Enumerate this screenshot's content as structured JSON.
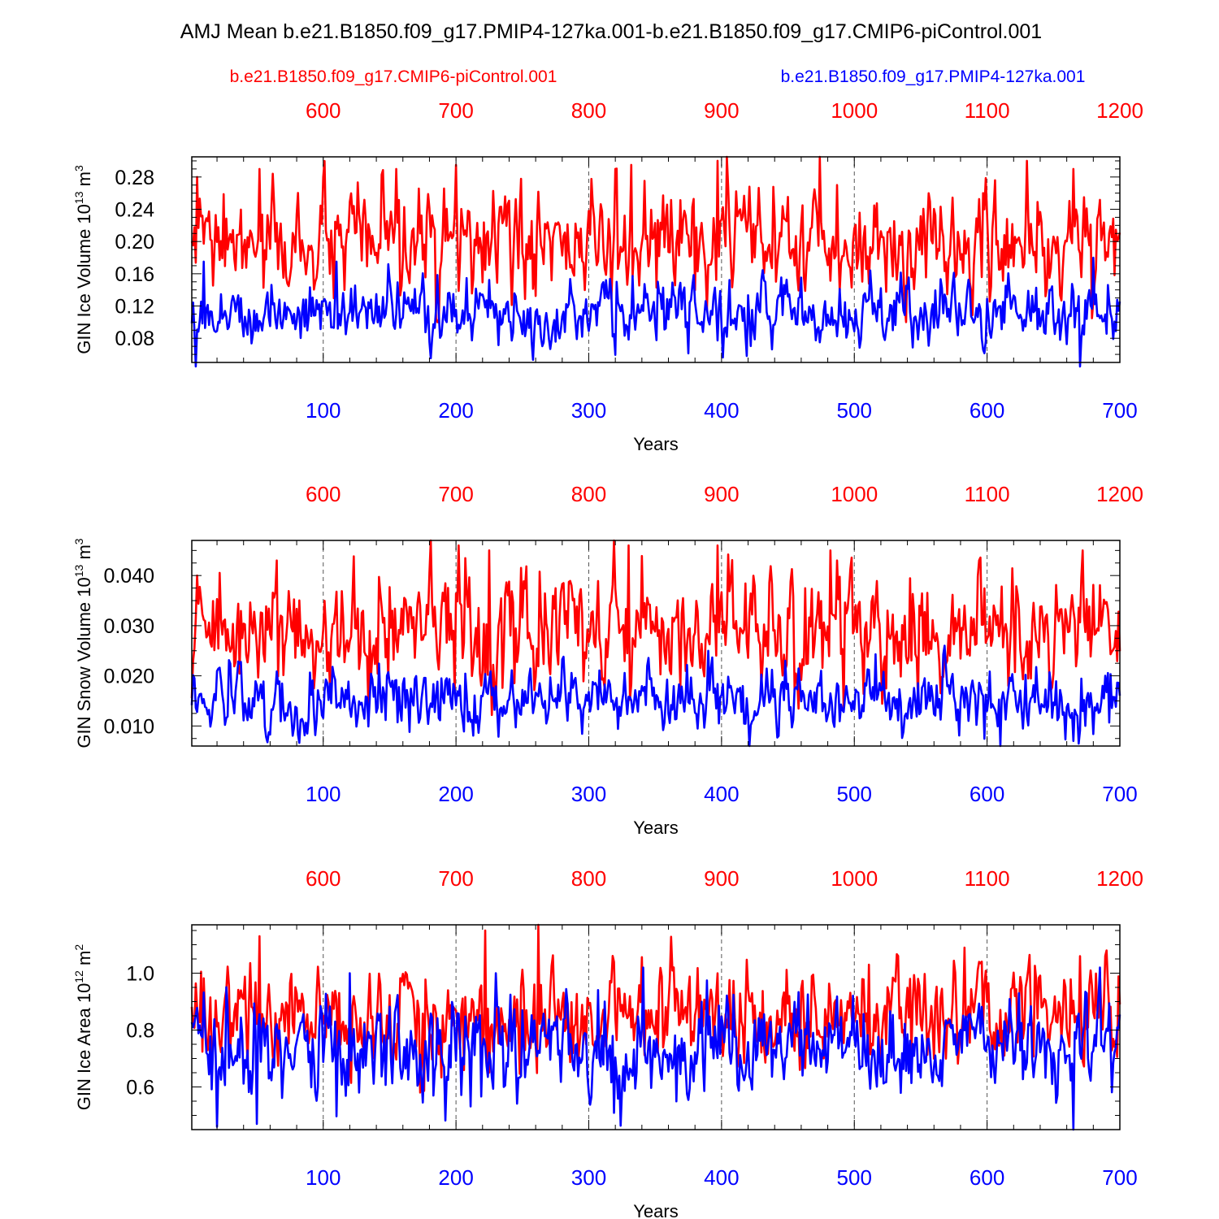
{
  "title": "AMJ Mean b.e21.B1850.f09_g17.PMIP4-127ka.001-b.e21.B1850.f09_g17.CMIP6-piControl.001",
  "legend": {
    "red_label": "b.e21.B1850.f09_g17.CMIP6-piControl.001",
    "blue_label": "b.e21.B1850.f09_g17.PMIP4-127ka.001"
  },
  "colors": {
    "red": "#ff0000",
    "blue": "#0000ff",
    "frame": "#000000"
  },
  "chart_data": [
    {
      "type": "line",
      "ylabel": "GIN Ice Volume",
      "yunit_base": "10",
      "yunit_exp": "13",
      "yunit_rest": "m",
      "yunit_rest_exp": "3",
      "xlabel": "Years",
      "xlim_bottom": [
        1,
        700
      ],
      "xlim_top": [
        501,
        1200
      ],
      "ylim": [
        0.05,
        0.305
      ],
      "yticks": [
        "0.08",
        "0.12",
        "0.16",
        "0.20",
        "0.24",
        "0.28"
      ],
      "ytick_values": [
        0.08,
        0.12,
        0.16,
        0.2,
        0.24,
        0.28
      ],
      "xticks_bottom": [
        "100",
        "200",
        "300",
        "400",
        "500",
        "600",
        "700"
      ],
      "xticks_top": [
        "600",
        "700",
        "800",
        "900",
        "1000",
        "1100",
        "1200"
      ],
      "grid": "dashed vertical at major x ticks",
      "series": [
        {
          "color": "red",
          "x_axis": "top",
          "mean": 0.195,
          "spread": 0.03,
          "min": 0.1,
          "max": 0.305,
          "years": [
            501,
            1200
          ],
          "peaks": [
            [
              505,
              0.28
            ],
            [
              552,
              0.29
            ],
            [
              600,
              0.28
            ],
            [
              655,
              0.29
            ],
            [
              700,
              0.295
            ],
            [
              820,
              0.29
            ],
            [
              832,
              0.295
            ],
            [
              897,
              0.3
            ],
            [
              904,
              0.305
            ],
            [
              987,
              0.27
            ],
            [
              1097,
              0.26
            ],
            [
              1130,
              0.3
            ],
            [
              1165,
              0.29
            ]
          ]
        },
        {
          "color": "blue",
          "x_axis": "bottom",
          "mean": 0.112,
          "spread": 0.018,
          "min": 0.045,
          "max": 0.18,
          "years": [
            1,
            700
          ],
          "peaks": [
            [
              10,
              0.175
            ],
            [
              110,
              0.175
            ],
            [
              670,
              0.045
            ],
            [
              680,
              0.18
            ]
          ]
        }
      ]
    },
    {
      "type": "line",
      "ylabel": "GIN Snow Volume",
      "yunit_base": "10",
      "yunit_exp": "13",
      "yunit_rest": "m",
      "yunit_rest_exp": "3",
      "xlabel": "Years",
      "xlim_bottom": [
        1,
        700
      ],
      "xlim_top": [
        501,
        1200
      ],
      "ylim": [
        0.006,
        0.047
      ],
      "yticks": [
        "0.010",
        "0.020",
        "0.030",
        "0.040"
      ],
      "ytick_values": [
        0.01,
        0.02,
        0.03,
        0.04
      ],
      "xticks_bottom": [
        "100",
        "200",
        "300",
        "400",
        "500",
        "600",
        "700"
      ],
      "xticks_top": [
        "600",
        "700",
        "800",
        "900",
        "1000",
        "1100",
        "1200"
      ],
      "grid": "dashed vertical at major x ticks",
      "series": [
        {
          "color": "red",
          "x_axis": "top",
          "mean": 0.029,
          "spread": 0.0055,
          "min": 0.012,
          "max": 0.047,
          "years": [
            501,
            1200
          ],
          "peaks": [
            [
              505,
              0.04
            ],
            [
              565,
              0.043
            ],
            [
              702,
              0.046
            ],
            [
              725,
              0.045
            ],
            [
              830,
              0.046
            ],
            [
              897,
              0.046
            ],
            [
              982,
              0.045
            ],
            [
              1172,
              0.045
            ]
          ]
        },
        {
          "color": "blue",
          "x_axis": "bottom",
          "mean": 0.0155,
          "spread": 0.003,
          "min": 0.006,
          "max": 0.026,
          "years": [
            1,
            700
          ],
          "peaks": [
            [
              610,
              0.006
            ],
            [
              665,
              0.007
            ],
            [
              390,
              0.025
            ]
          ]
        }
      ]
    },
    {
      "type": "line",
      "ylabel": "GIN Ice Area",
      "yunit_base": "10",
      "yunit_exp": "12",
      "yunit_rest": "m",
      "yunit_rest_exp": "2",
      "xlabel": "Years",
      "xlim_bottom": [
        1,
        700
      ],
      "xlim_top": [
        501,
        1200
      ],
      "ylim": [
        0.45,
        1.17
      ],
      "yticks": [
        "0.6",
        "0.8",
        "1.0"
      ],
      "ytick_values": [
        0.6,
        0.8,
        1.0
      ],
      "xticks_bottom": [
        "100",
        "200",
        "300",
        "400",
        "500",
        "600",
        "700"
      ],
      "xticks_top": [
        "600",
        "700",
        "800",
        "900",
        "1000",
        "1100",
        "1200"
      ],
      "grid": "dashed vertical at major x ticks",
      "series": [
        {
          "color": "red",
          "x_axis": "top",
          "mean": 0.84,
          "spread": 0.085,
          "min": 0.54,
          "max": 1.17,
          "years": [
            501,
            1200
          ],
          "peaks": [
            [
              552,
              1.13
            ],
            [
              722,
              1.15
            ],
            [
              762,
              1.17
            ],
            [
              1083,
              1.09
            ],
            [
              1170,
              1.06
            ]
          ]
        },
        {
          "color": "blue",
          "x_axis": "bottom",
          "mean": 0.73,
          "spread": 0.08,
          "min": 0.45,
          "max": 1.02,
          "years": [
            1,
            700
          ],
          "peaks": [
            [
              20,
              0.46
            ],
            [
              50,
              0.47
            ],
            [
              665,
              0.45
            ],
            [
              685,
              1.02
            ],
            [
              230,
              1.0
            ],
            [
              120,
              1.0
            ]
          ]
        }
      ]
    }
  ]
}
